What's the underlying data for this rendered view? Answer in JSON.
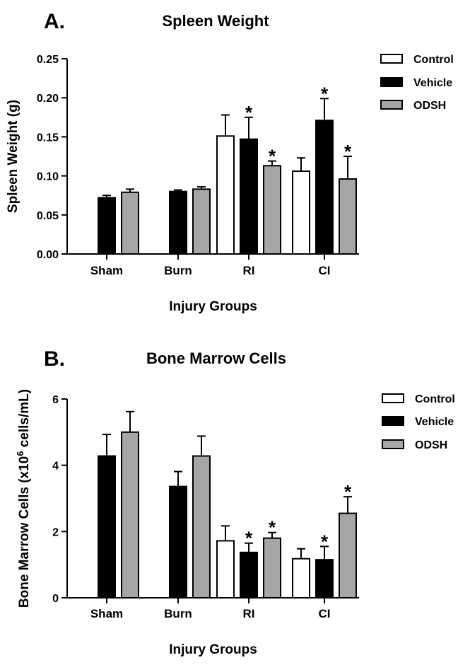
{
  "colors": {
    "Control": "#ffffff",
    "Vehicle": "#000000",
    "ODSH": "#a6a6a6",
    "stroke": "#000000"
  },
  "chart_data": [
    {
      "type": "bar",
      "panel": "A.",
      "title": "Spleen Weight",
      "xlabel": "Injury Groups",
      "ylabel": "Spleen Weight (g)",
      "ylim": [
        0,
        0.25
      ],
      "yticks": [
        "0.00",
        "0.05",
        "0.10",
        "0.15",
        "0.20",
        "0.25"
      ],
      "categories": [
        "Sham",
        "Burn",
        "RI",
        "CI"
      ],
      "legend_position": "top-right",
      "series": [
        {
          "name": "Control",
          "values": [
            null,
            null,
            0.151,
            0.106
          ],
          "errors": [
            null,
            null,
            0.027,
            0.017
          ],
          "significant": [
            false,
            false,
            false,
            false
          ]
        },
        {
          "name": "Vehicle",
          "values": [
            0.072,
            0.08,
            0.147,
            0.171
          ],
          "errors": [
            0.003,
            0.002,
            0.028,
            0.028
          ],
          "significant": [
            false,
            false,
            true,
            true
          ]
        },
        {
          "name": "ODSH",
          "values": [
            0.079,
            0.083,
            0.113,
            0.096
          ],
          "errors": [
            0.004,
            0.003,
            0.006,
            0.029
          ],
          "significant": [
            false,
            false,
            true,
            true
          ]
        }
      ],
      "significance_marker": "*"
    },
    {
      "type": "bar",
      "panel": "B.",
      "title": "Bone Marrow Cells",
      "xlabel": "Injury Groups",
      "ylabel_main": "Bone Marrow Cells (x10",
      "ylabel_sup": "6",
      "ylabel_tail": " cells/mL)",
      "ylim": [
        0,
        6
      ],
      "yticks": [
        "0",
        "2",
        "4",
        "6"
      ],
      "categories": [
        "Sham",
        "Burn",
        "RI",
        "CI"
      ],
      "legend_position": "top-right",
      "series": [
        {
          "name": "Control",
          "values": [
            null,
            null,
            1.72,
            1.18
          ],
          "errors": [
            null,
            null,
            0.45,
            0.3
          ],
          "significant": [
            false,
            false,
            false,
            false
          ]
        },
        {
          "name": "Vehicle",
          "values": [
            4.28,
            3.36,
            1.37,
            1.15
          ],
          "errors": [
            0.65,
            0.45,
            0.28,
            0.4
          ],
          "significant": [
            false,
            false,
            true,
            true
          ]
        },
        {
          "name": "ODSH",
          "values": [
            5.0,
            4.28,
            1.8,
            2.55
          ],
          "errors": [
            0.62,
            0.6,
            0.17,
            0.5
          ],
          "significant": [
            false,
            false,
            true,
            true
          ]
        }
      ],
      "significance_marker": "*"
    }
  ]
}
